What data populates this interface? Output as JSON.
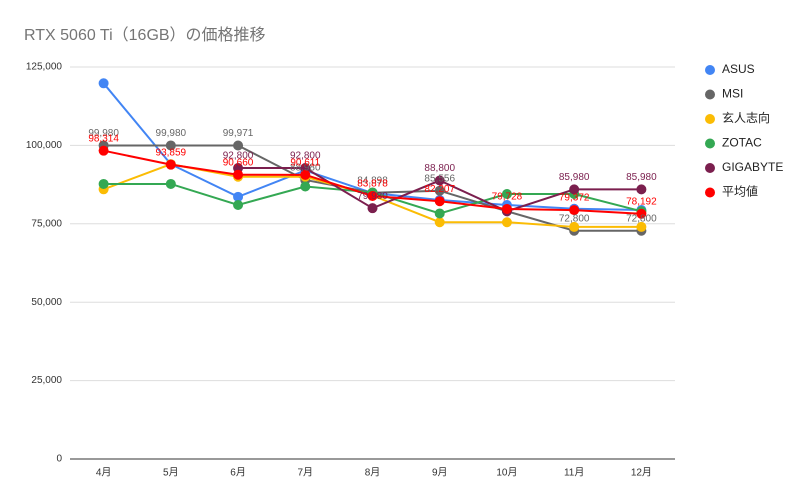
{
  "chart_data": {
    "type": "line",
    "title": "RTX 5060 Ti（16GB）の価格推移",
    "categories": [
      "4月",
      "5月",
      "6月",
      "7月",
      "8月",
      "9月",
      "10月",
      "11月",
      "12月"
    ],
    "series": [
      {
        "name": "ASUS",
        "color": "#4285f4",
        "values": [
          119800,
          94000,
          83600,
          92000,
          84800,
          82600,
          81000,
          79800,
          79400
        ]
      },
      {
        "name": "MSI",
        "color": "#666666",
        "values": [
          99980,
          99980,
          99971,
          88980,
          84898,
          85556,
          79000,
          72800,
          72800
        ],
        "value_labels": [
          "99,980",
          "99,980",
          "99,971",
          "88,980",
          "84,898",
          "85,556",
          null,
          "72,800",
          "72,800"
        ]
      },
      {
        "name": "玄人志向",
        "color": "#fbbc04",
        "values": [
          86000,
          94000,
          90000,
          90000,
          84000,
          75500,
          75500,
          74000,
          74000
        ]
      },
      {
        "name": "ZOTAC",
        "color": "#34a853",
        "values": [
          87700,
          87700,
          81000,
          86900,
          85000,
          78300,
          84500,
          84500,
          79000
        ]
      },
      {
        "name": "GIGABYTE",
        "color": "#7b1f4e",
        "values": [
          null,
          null,
          92800,
          92800,
          79980,
          88800,
          79000,
          85980,
          85980
        ],
        "value_labels": [
          null,
          null,
          "92,800",
          "92,800",
          "79,980",
          "88,800",
          null,
          "85,980",
          "85,980"
        ]
      },
      {
        "name": "平均値",
        "color": "#ff0000",
        "values": [
          98314,
          93859,
          90660,
          90611,
          83878,
          82207,
          79728,
          79372,
          78192
        ],
        "value_labels": [
          "98,314",
          "93,859",
          "90,660",
          "90,611",
          "83,878",
          "82,207",
          "79,728",
          "79,372",
          "78,192"
        ]
      }
    ],
    "ylim": [
      0,
      125000
    ],
    "yticks": [
      {
        "value": 0,
        "label": "0"
      },
      {
        "value": 25000,
        "label": "25,000"
      },
      {
        "value": 50000,
        "label": "50,000"
      },
      {
        "value": 75000,
        "label": "75,000"
      },
      {
        "value": 100000,
        "label": "100,000"
      },
      {
        "value": 125000,
        "label": "125,000"
      }
    ],
    "grid": true,
    "legend": "right"
  }
}
